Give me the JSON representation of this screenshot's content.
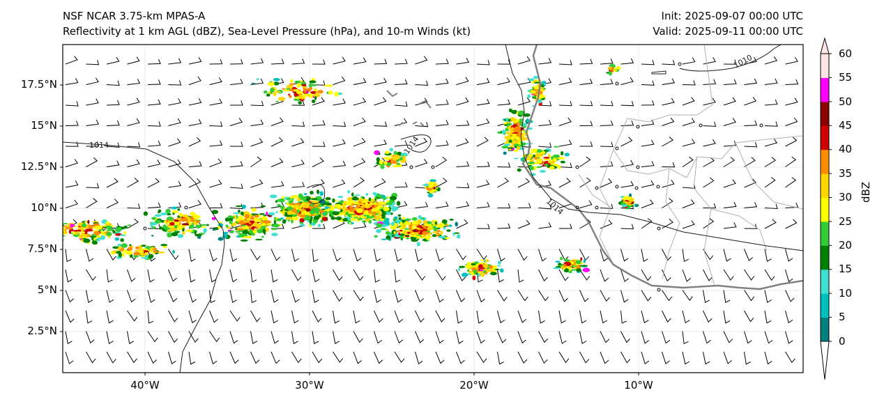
{
  "header": {
    "left_line1": "NSF NCAR 3.75-km MPAS-A",
    "left_line2": "Reflectivity at 1 km AGL (dBZ), Sea-Level Pressure (hPa), and 10-m Winds (kt)",
    "right_line1": "Init: 2025-09-07 00:00 UTC",
    "right_line2": "Valid: 2025-09-11 00:00 UTC"
  },
  "map": {
    "y_ticks": [
      "17.5°N",
      "15°N",
      "12.5°N",
      "10°N",
      "7.5°N",
      "5°N",
      "2.5°N"
    ],
    "x_ticks": [
      "40°W",
      "30°W",
      "20°W",
      "10°W"
    ],
    "isobar_labels": [
      "1014",
      "1014",
      "1014",
      "1010"
    ],
    "colors": {
      "coast": "#808080",
      "border": "#b0b0b0",
      "isobar": "#1a1a1a",
      "grid": "#e8e8e8"
    }
  },
  "colorbar": {
    "label": "dBZ",
    "tick_labels": [
      "0",
      "5",
      "10",
      "15",
      "20",
      "25",
      "30",
      "35",
      "40",
      "45",
      "50",
      "55",
      "60"
    ],
    "colors": [
      "#008080",
      "#00bfbf",
      "#40e0d0",
      "#008000",
      "#32cd32",
      "#ffff00",
      "#ffd700",
      "#ff8c00",
      "#cc0000",
      "#8b0000",
      "#ff00ff",
      "#ffe4e1"
    ]
  }
}
